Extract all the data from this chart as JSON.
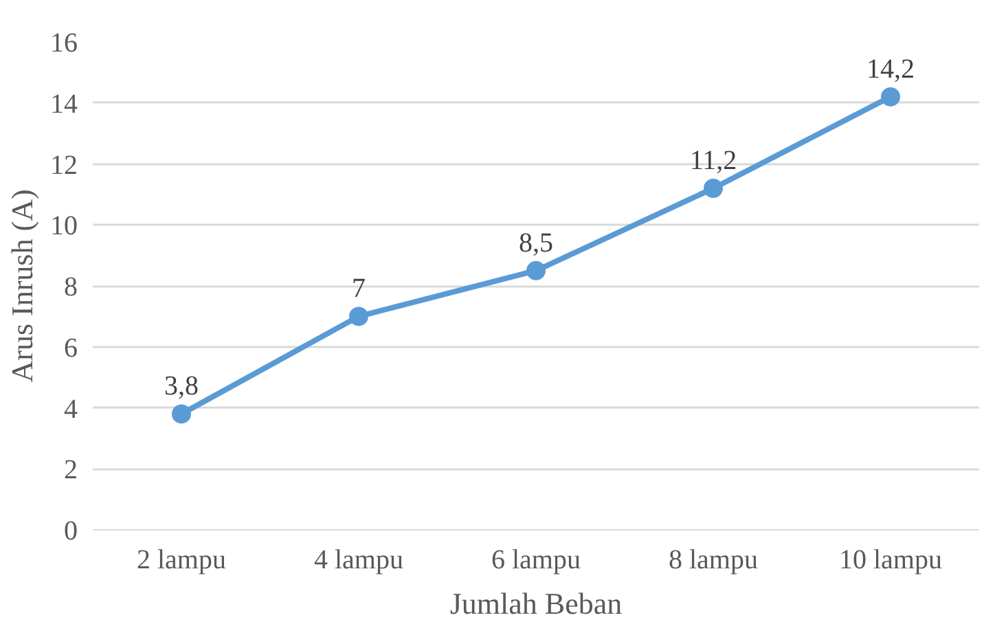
{
  "chart_data": {
    "type": "line",
    "xlabel": "Jumlah Beban",
    "ylabel": "Arus Inrush (A)",
    "categories": [
      "2 lampu",
      "4 lampu",
      "6 lampu",
      "8 lampu",
      "10 lampu"
    ],
    "series": [
      {
        "color": "#5b9bd5",
        "values": [
          3.8,
          7,
          8.5,
          11.2,
          14.2
        ],
        "value_labels": [
          "3,8",
          "7",
          "8,5",
          "11,2",
          "14,2"
        ]
      }
    ],
    "ylim": [
      0,
      16
    ],
    "yticks": [
      0,
      2,
      4,
      6,
      8,
      10,
      12,
      14,
      16
    ],
    "grid": "y",
    "marker": "circle",
    "line_style": "solid"
  }
}
